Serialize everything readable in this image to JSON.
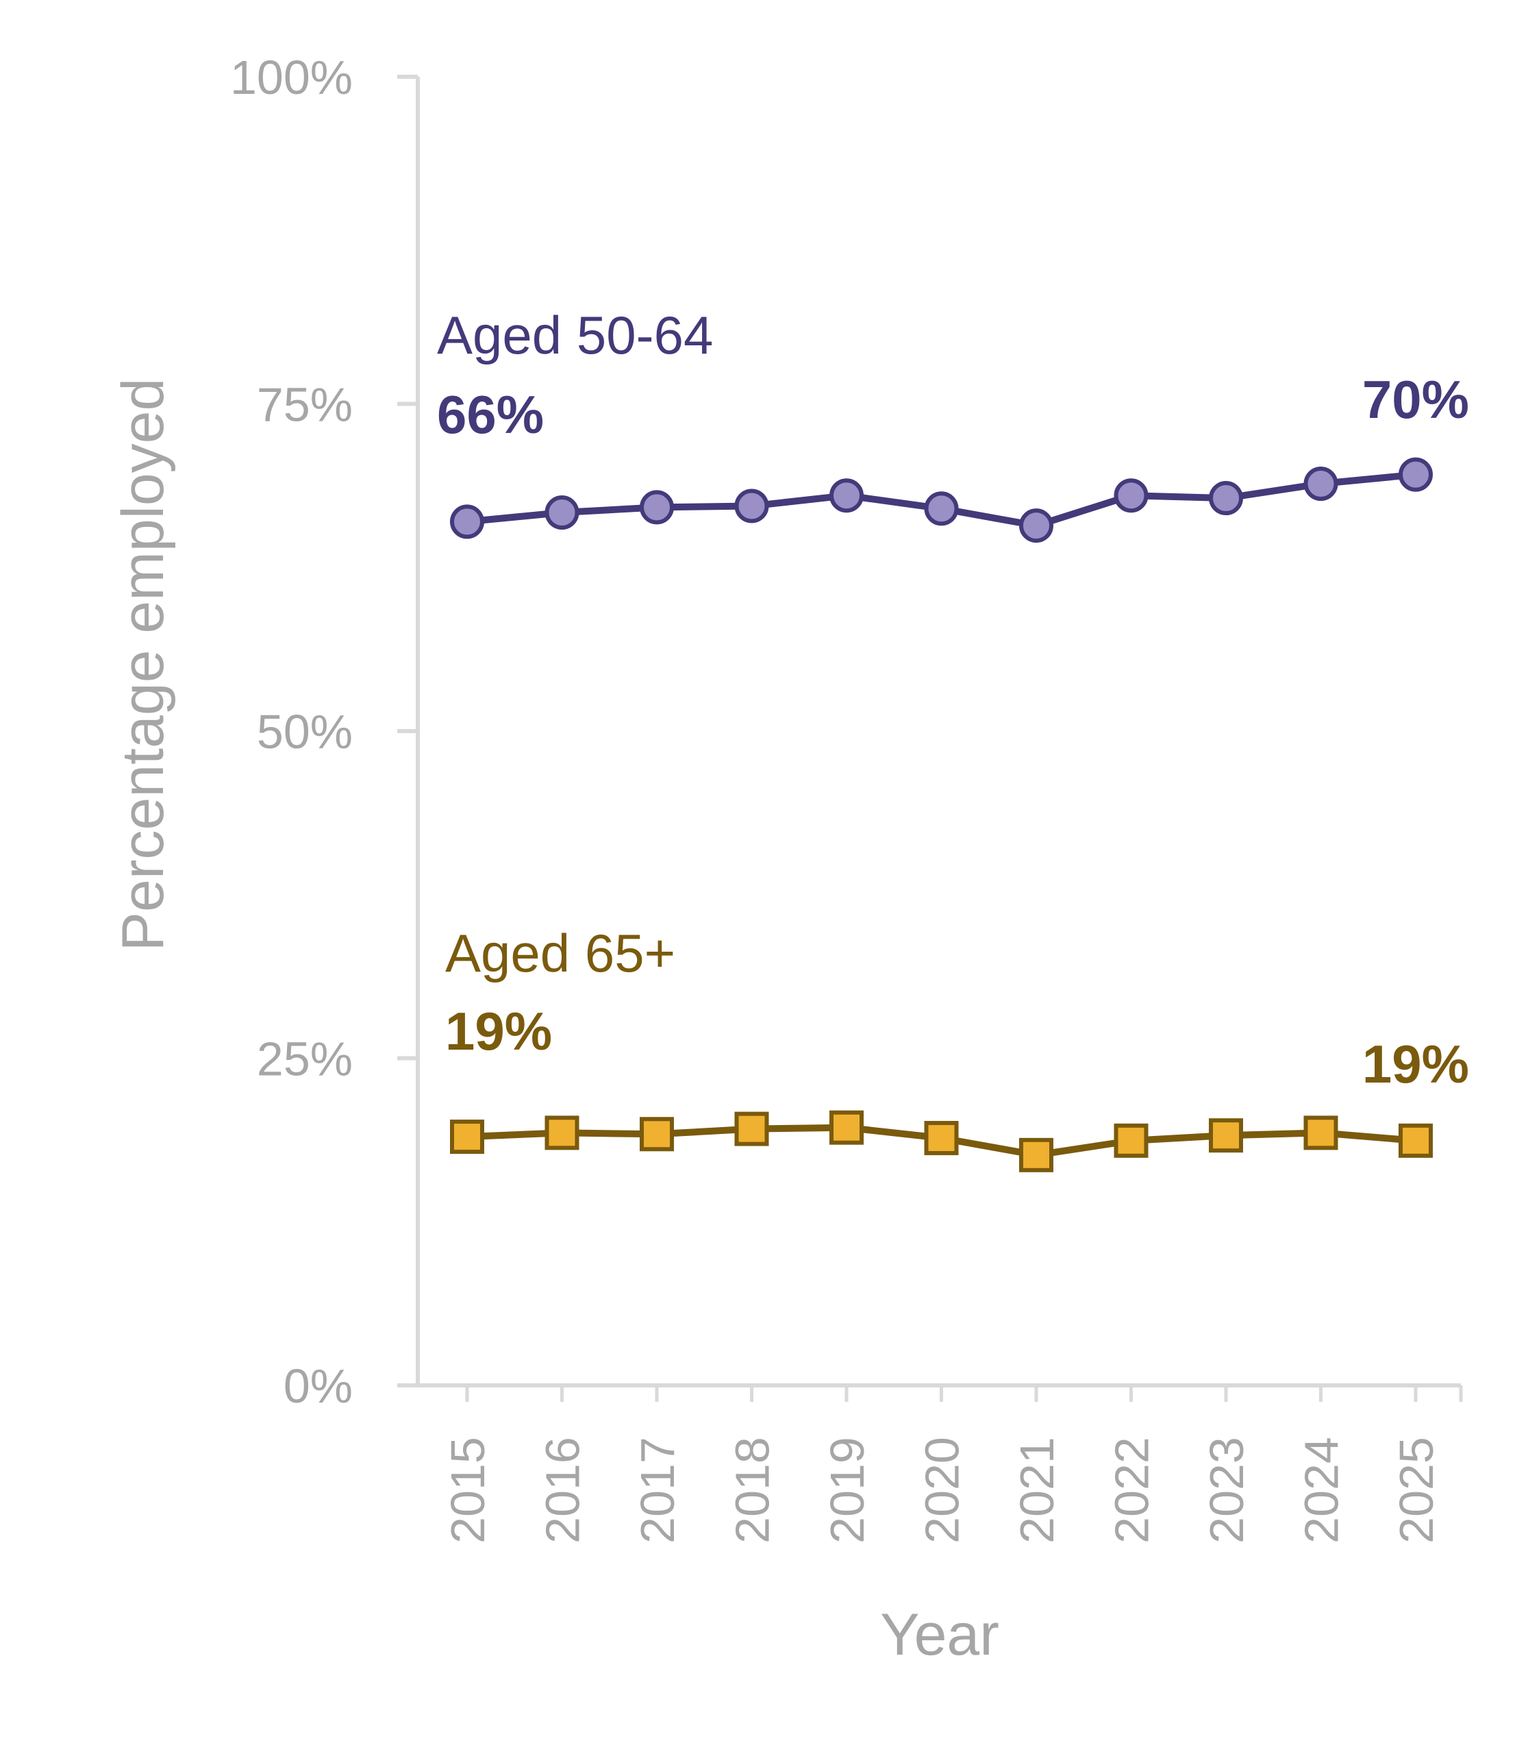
{
  "chart_data": {
    "type": "line",
    "xlabel": "Year",
    "ylabel": "Percentage employed",
    "ylim": [
      0,
      100
    ],
    "y_ticks": [
      "0%",
      "25%",
      "50%",
      "75%",
      "100%"
    ],
    "y_tick_values": [
      0,
      25,
      50,
      75,
      100
    ],
    "categories": [
      "2015",
      "2016",
      "2017",
      "2018",
      "2019",
      "2020",
      "2021",
      "2022",
      "2023",
      "2024",
      "2025"
    ],
    "grid": false,
    "legend": "none (direct labels)",
    "series": [
      {
        "name": "Aged 50-64",
        "marker": "circle",
        "color": "#433a7a",
        "fill": "#9a90c6",
        "values": [
          66.0,
          66.7,
          67.1,
          67.2,
          68.0,
          67.0,
          65.7,
          68.0,
          67.8,
          68.9,
          69.6
        ],
        "start_label": "66%",
        "end_label": "70%"
      },
      {
        "name": "Aged 65+",
        "marker": "square",
        "color": "#7a5a0d",
        "fill": "#efb12f",
        "values": [
          19.0,
          19.3,
          19.2,
          19.6,
          19.7,
          18.9,
          17.6,
          18.7,
          19.1,
          19.3,
          18.7
        ],
        "start_label": "19%",
        "end_label": "19%"
      }
    ]
  }
}
